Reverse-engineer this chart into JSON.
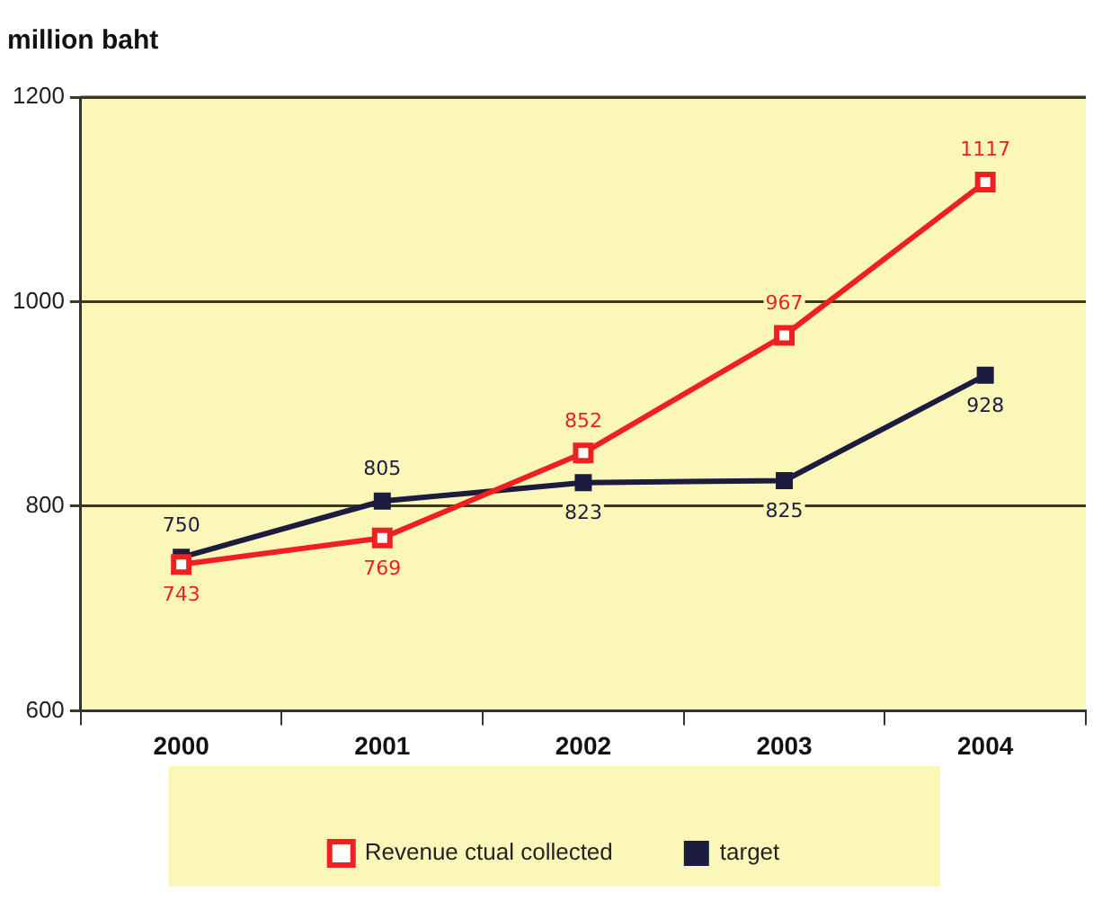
{
  "chart_data": {
    "type": "line",
    "ylabel": "million baht",
    "categories": [
      "2000",
      "2001",
      "2002",
      "2003",
      "2004"
    ],
    "series": [
      {
        "name": "Revenue ctual collected",
        "color": "#f02020",
        "values": [
          743,
          769,
          852,
          967,
          1117
        ],
        "marker": "square_open"
      },
      {
        "name": "target",
        "color": "#1c1c40",
        "values": [
          750,
          805,
          823,
          825,
          928
        ]
      }
    ],
    "ylim": [
      600,
      1200
    ],
    "yticks": [
      600,
      800,
      1000,
      1200
    ],
    "grid": "y",
    "legend": "bottom",
    "data_labels": true,
    "marker": "square",
    "line_style": "solid"
  }
}
